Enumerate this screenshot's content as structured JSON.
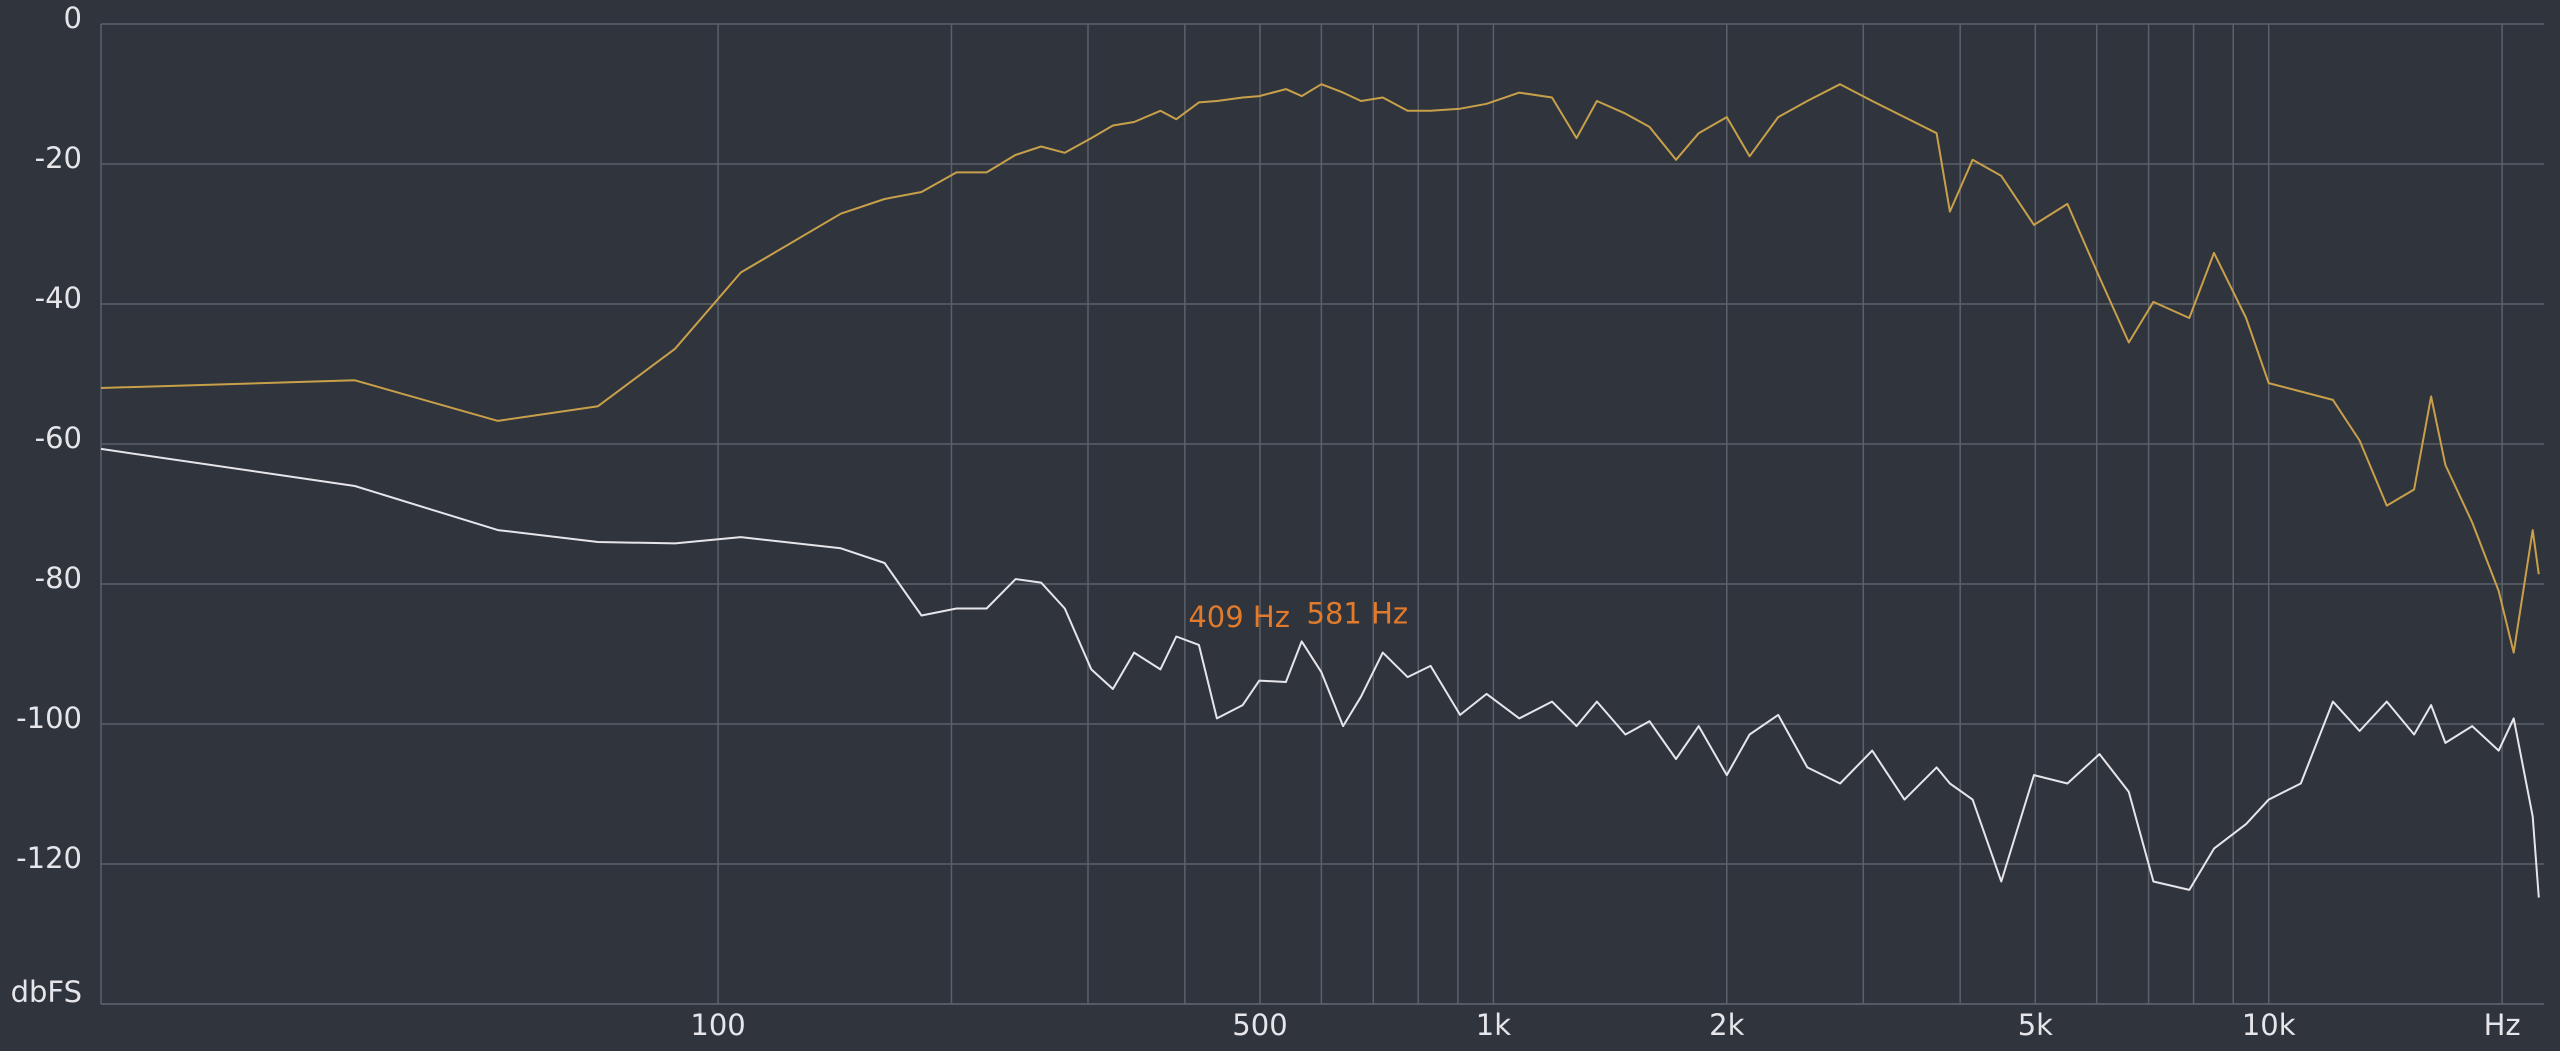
{
  "chart_data": {
    "type": "line",
    "x": [
      16,
      34,
      52,
      70,
      88,
      107,
      144,
      164,
      183,
      203,
      222,
      242,
      261,
      280,
      303,
      323,
      344,
      372,
      390,
      417,
      440,
      475,
      499,
      540,
      566,
      600,
      640,
      675,
      720,
      775,
      830,
      906,
      980,
      1080,
      1190,
      1280,
      1360,
      1480,
      1590,
      1720,
      1840,
      2000,
      2140,
      2330,
      2540,
      2800,
      3080,
      3390,
      3730,
      3880,
      4150,
      4520,
      4980,
      5500,
      6050,
      6600,
      7100,
      7900,
      8500,
      9350,
      10000,
      11000,
      12100,
      13100,
      14200,
      15400,
      16200,
      16900,
      18300,
      19800,
      20700,
      21900,
      22300
    ],
    "series": [
      {
        "color": "#c9a04a",
        "values": [
          -52,
          -50.9,
          -56.7,
          -54.6,
          -46.4,
          -35.5,
          -27.1,
          -25,
          -24,
          -21.2,
          -21.2,
          -18.7,
          -17.5,
          -18.4,
          -16.3,
          -14.5,
          -14,
          -12.4,
          -13.6,
          -11.2,
          -11,
          -10.5,
          -10.3,
          -9.3,
          -10.3,
          -8.6,
          -9.8,
          -11,
          -10.5,
          -12.4,
          -12.4,
          -12.1,
          -11.4,
          -9.8,
          -10.5,
          -16.3,
          -11,
          -12.8,
          -14.7,
          -19.4,
          -15.6,
          -13.3,
          -18.9,
          -13.3,
          -11,
          -8.6,
          -11,
          -13.3,
          -15.6,
          -26.8,
          -19.4,
          -21.7,
          -28.7,
          -25.7,
          -36.2,
          -45.5,
          -39.7,
          -42,
          -32.7,
          -42,
          -51.3,
          -52.5,
          -53.7,
          -59.5,
          -68.8,
          -66.5,
          -53.2,
          -63,
          -71.2,
          -81,
          -89.8,
          -72.3,
          -78.6
        ]
      },
      {
        "color": "#e6e6ea",
        "values": [
          -60.7,
          -66,
          -72.3,
          -74,
          -74.2,
          -73.3,
          -74.9,
          -77,
          -84.5,
          -83.5,
          -83.5,
          -79.3,
          -79.8,
          -83.5,
          -92.2,
          -95,
          -89.8,
          -92.2,
          -87.5,
          -88.7,
          -99.2,
          -97.3,
          -93.8,
          -94,
          -88.2,
          -92.6,
          -100.3,
          -96.1,
          -89.8,
          -93.3,
          -91.7,
          -98.7,
          -95.7,
          -99.2,
          -96.8,
          -100.3,
          -96.8,
          -101.5,
          -99.6,
          -105,
          -100.3,
          -107.3,
          -101.5,
          -98.7,
          -106.2,
          -108.5,
          -103.8,
          -110.8,
          -106.2,
          -108.5,
          -110.8,
          -122.5,
          -107.3,
          -108.5,
          -104.3,
          -109.7,
          -122.5,
          -123.7,
          -117.8,
          -114.3,
          -110.8,
          -108.5,
          -96.8,
          -101,
          -96.8,
          -101.5,
          -97.3,
          -102.7,
          -100.3,
          -103.8,
          -99.2,
          -113.2,
          -124.8
        ]
      }
    ],
    "xscale": "log",
    "xlim": [
      16,
      22650
    ],
    "xticks": [
      100,
      500,
      {
        "value": 1000,
        "label": "1k"
      },
      {
        "value": 2000,
        "label": "2k"
      },
      {
        "value": 5000,
        "label": "5k"
      },
      {
        "value": 10000,
        "label": "10k"
      },
      {
        "value": 20000,
        "label": "Hz"
      }
    ],
    "xminor": [
      200,
      300,
      400,
      600,
      700,
      800,
      900,
      3000,
      4000,
      6000,
      7000,
      8000,
      9000
    ],
    "ylim": [
      -140,
      0
    ],
    "yticks": [
      0,
      -20,
      -40,
      -60,
      -80,
      -100,
      -120,
      {
        "value": -140,
        "label": "dbFS"
      }
    ],
    "grid": true,
    "annotations": [
      {
        "label": "409 Hz",
        "x": 409,
        "y": -88.7,
        "color": "#e07a2c"
      },
      {
        "label": "581 Hz",
        "x": 581,
        "y": -88.2,
        "color": "#e07a2c"
      }
    ]
  }
}
